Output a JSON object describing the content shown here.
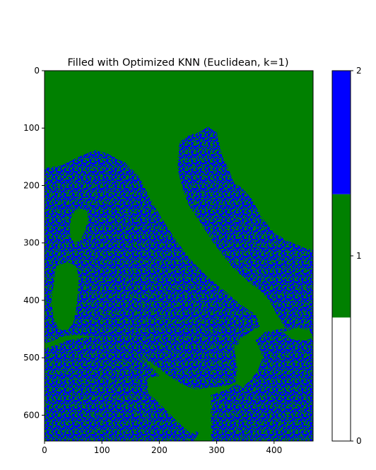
{
  "chart_data": {
    "type": "heatmap",
    "title": "Filled with Optimized KNN (Euclidean, k=1)",
    "xlabel": "",
    "ylabel": "",
    "xlim": [
      0,
      468
    ],
    "ylim": [
      645,
      0
    ],
    "x_ticks": [
      0,
      100,
      200,
      300,
      400
    ],
    "y_ticks": [
      0,
      100,
      200,
      300,
      400,
      500,
      600
    ],
    "colormap": [
      {
        "value": 0,
        "color": "#ffffff"
      },
      {
        "value": 1,
        "color": "#008000"
      },
      {
        "value": 2,
        "color": "#0000ff"
      }
    ],
    "colorbar": {
      "range": [
        0,
        2
      ],
      "ticks": [
        0,
        1,
        2
      ],
      "segments": [
        {
          "from": 0,
          "to": 0.667,
          "color": "#ffffff"
        },
        {
          "from": 0.667,
          "to": 1.333,
          "color": "#008000"
        },
        {
          "from": 1.333,
          "to": 2,
          "color": "#0000ff"
        }
      ]
    },
    "description_regions": {
      "sea_value": 1,
      "land_value_mix": [
        1,
        2
      ]
    },
    "land_polygons": [
      [
        [
          0,
          170
        ],
        [
          30,
          165
        ],
        [
          60,
          150
        ],
        [
          90,
          138
        ],
        [
          110,
          145
        ],
        [
          140,
          160
        ],
        [
          165,
          185
        ],
        [
          180,
          215
        ],
        [
          200,
          250
        ],
        [
          225,
          290
        ],
        [
          255,
          330
        ],
        [
          285,
          360
        ],
        [
          315,
          385
        ],
        [
          345,
          410
        ],
        [
          368,
          425
        ],
        [
          375,
          445
        ],
        [
          358,
          455
        ],
        [
          338,
          470
        ],
        [
          340,
          492
        ],
        [
          352,
          510
        ],
        [
          360,
          528
        ],
        [
          340,
          540
        ],
        [
          318,
          548
        ],
        [
          290,
          552
        ],
        [
          262,
          555
        ],
        [
          238,
          545
        ],
        [
          212,
          528
        ],
        [
          188,
          510
        ],
        [
          160,
          495
        ],
        [
          130,
          480
        ],
        [
          110,
          470
        ],
        [
          80,
          462
        ],
        [
          55,
          460
        ],
        [
          35,
          462
        ],
        [
          15,
          470
        ],
        [
          0,
          475
        ]
      ],
      [
        [
          0,
          485
        ],
        [
          40,
          470
        ],
        [
          80,
          463
        ],
        [
          120,
          472
        ],
        [
          150,
          488
        ],
        [
          175,
          505
        ],
        [
          195,
          525
        ],
        [
          205,
          540
        ],
        [
          200,
          555
        ],
        [
          220,
          568
        ],
        [
          250,
          585
        ],
        [
          268,
          600
        ],
        [
          272,
          622
        ],
        [
          262,
          645
        ],
        [
          0,
          645
        ]
      ],
      [
        [
          290,
          565
        ],
        [
          320,
          555
        ],
        [
          340,
          542
        ],
        [
          356,
          530
        ],
        [
          372,
          510
        ],
        [
          378,
          490
        ],
        [
          368,
          470
        ],
        [
          385,
          455
        ],
        [
          420,
          448
        ],
        [
          450,
          445
        ],
        [
          468,
          445
        ],
        [
          468,
          645
        ],
        [
          290,
          645
        ]
      ],
      [
        [
          235,
          125
        ],
        [
          252,
          112
        ],
        [
          268,
          108
        ],
        [
          285,
          98
        ],
        [
          300,
          108
        ],
        [
          305,
          130
        ],
        [
          310,
          150
        ],
        [
          318,
          165
        ],
        [
          330,
          195
        ],
        [
          345,
          205
        ],
        [
          362,
          225
        ],
        [
          378,
          255
        ],
        [
          398,
          280
        ],
        [
          420,
          295
        ],
        [
          440,
          303
        ],
        [
          455,
          310
        ],
        [
          468,
          312
        ],
        [
          468,
          460
        ],
        [
          445,
          465
        ],
        [
          420,
          448
        ],
        [
          405,
          425
        ],
        [
          392,
          400
        ],
        [
          372,
          380
        ],
        [
          352,
          365
        ],
        [
          325,
          340
        ],
        [
          295,
          300
        ],
        [
          272,
          265
        ],
        [
          252,
          235
        ],
        [
          240,
          205
        ],
        [
          232,
          170
        ]
      ]
    ],
    "sea_polygons": [
      [
        [
          48,
          250
        ],
        [
          62,
          240
        ],
        [
          75,
          245
        ],
        [
          76,
          262
        ],
        [
          70,
          280
        ],
        [
          63,
          295
        ],
        [
          52,
          300
        ],
        [
          45,
          290
        ],
        [
          44,
          270
        ]
      ],
      [
        [
          20,
          340
        ],
        [
          40,
          333
        ],
        [
          55,
          340
        ],
        [
          60,
          360
        ],
        [
          58,
          390
        ],
        [
          55,
          415
        ],
        [
          50,
          440
        ],
        [
          40,
          452
        ],
        [
          25,
          450
        ],
        [
          15,
          430
        ],
        [
          12,
          400
        ],
        [
          16,
          370
        ]
      ],
      [
        [
          180,
          535
        ],
        [
          210,
          530
        ],
        [
          235,
          548
        ],
        [
          262,
          557
        ],
        [
          290,
          555
        ],
        [
          282,
          590
        ],
        [
          275,
          625
        ],
        [
          255,
          632
        ],
        [
          232,
          612
        ],
        [
          205,
          585
        ],
        [
          180,
          560
        ]
      ],
      [
        [
          330,
          480
        ],
        [
          350,
          470
        ],
        [
          370,
          478
        ],
        [
          380,
          500
        ],
        [
          372,
          522
        ],
        [
          358,
          540
        ],
        [
          345,
          552
        ],
        [
          332,
          545
        ],
        [
          336,
          520
        ]
      ],
      [
        [
          415,
          455
        ],
        [
          440,
          448
        ],
        [
          462,
          452
        ],
        [
          468,
          465
        ],
        [
          455,
          470
        ],
        [
          432,
          468
        ]
      ]
    ]
  }
}
